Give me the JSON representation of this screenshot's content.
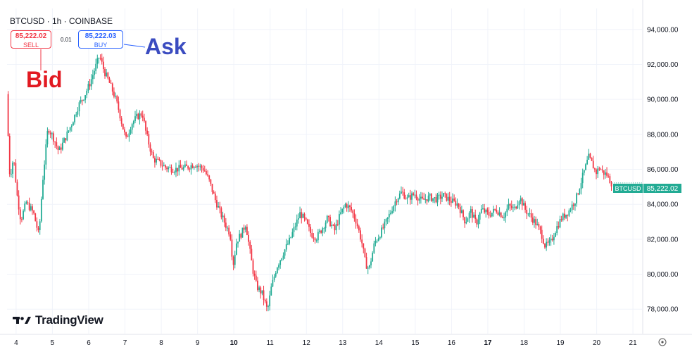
{
  "header": {
    "title": "BTCUSD · 1h · COINBASE",
    "sell_price": "85,222.02",
    "sell_label": "SELL",
    "spread": "0.01",
    "buy_price": "85,222.03",
    "buy_label": "BUY"
  },
  "annotations": {
    "bid": "Bid",
    "ask": "Ask"
  },
  "branding": {
    "name": "TradingView"
  },
  "last_price_tag": {
    "symbol": "BTCUSD",
    "price": "85,222.02"
  },
  "colors": {
    "up": "#22ab94",
    "down": "#f23645",
    "bid_text": "#e21a22",
    "ask_text": "#3b4cc0",
    "buy_border": "#2962ff",
    "tag_bg": "#22ab94"
  },
  "chart_data": {
    "type": "candlestick",
    "title": "BTCUSD · 1h · COINBASE",
    "x_axis": {
      "ticks": [
        "4",
        "5",
        "6",
        "7",
        "8",
        "9",
        "10",
        "11",
        "12",
        "13",
        "14",
        "15",
        "16",
        "17",
        "18",
        "19",
        "20",
        "21"
      ],
      "bold_ticks": [
        "10",
        "17"
      ],
      "range": [
        3.75,
        21.25
      ]
    },
    "y_axis": {
      "position": "right",
      "ticks": [
        "78,000.00",
        "80,000.00",
        "82,000.00",
        "84,000.00",
        "86,000.00",
        "88,000.00",
        "90,000.00",
        "92,000.00",
        "94,000.00"
      ],
      "tick_values": [
        78000,
        80000,
        82000,
        84000,
        86000,
        88000,
        90000,
        92000,
        94000
      ],
      "range": [
        76600,
        95200
      ]
    },
    "grid": true,
    "last_price": 85222.02,
    "price_path": [
      [
        3.76,
        90300
      ],
      [
        3.8,
        88000
      ],
      [
        3.85,
        85500
      ],
      [
        3.95,
        86700
      ],
      [
        4.05,
        84500
      ],
      [
        4.15,
        83100
      ],
      [
        4.3,
        84100
      ],
      [
        4.5,
        83500
      ],
      [
        4.65,
        82200
      ],
      [
        4.75,
        85300
      ],
      [
        4.9,
        88400
      ],
      [
        5.05,
        87800
      ],
      [
        5.2,
        87000
      ],
      [
        5.4,
        87900
      ],
      [
        5.55,
        88600
      ],
      [
        5.75,
        89700
      ],
      [
        5.9,
        90200
      ],
      [
        6.05,
        90900
      ],
      [
        6.2,
        91800
      ],
      [
        6.32,
        92500
      ],
      [
        6.45,
        91600
      ],
      [
        6.6,
        90900
      ],
      [
        6.75,
        90100
      ],
      [
        6.85,
        89400
      ],
      [
        6.95,
        88500
      ],
      [
        7.05,
        87700
      ],
      [
        7.2,
        88600
      ],
      [
        7.35,
        89000
      ],
      [
        7.5,
        89200
      ],
      [
        7.6,
        88100
      ],
      [
        7.7,
        87300
      ],
      [
        7.8,
        86600
      ],
      [
        7.95,
        86400
      ],
      [
        8.15,
        86100
      ],
      [
        8.4,
        86000
      ],
      [
        8.7,
        86100
      ],
      [
        8.95,
        86300
      ],
      [
        9.2,
        86000
      ],
      [
        9.35,
        85300
      ],
      [
        9.5,
        84300
      ],
      [
        9.65,
        83500
      ],
      [
        9.8,
        82800
      ],
      [
        9.92,
        82300
      ],
      [
        10.0,
        80500
      ],
      [
        10.1,
        81900
      ],
      [
        10.25,
        82400
      ],
      [
        10.35,
        82900
      ],
      [
        10.45,
        81500
      ],
      [
        10.55,
        80200
      ],
      [
        10.65,
        79300
      ],
      [
        10.8,
        78900
      ],
      [
        10.95,
        77900
      ],
      [
        11.05,
        79200
      ],
      [
        11.2,
        80400
      ],
      [
        11.4,
        81300
      ],
      [
        11.55,
        81900
      ],
      [
        11.7,
        82700
      ],
      [
        11.85,
        83500
      ],
      [
        12.0,
        83000
      ],
      [
        12.15,
        82300
      ],
      [
        12.3,
        82100
      ],
      [
        12.45,
        82600
      ],
      [
        12.6,
        83200
      ],
      [
        12.8,
        82500
      ],
      [
        12.95,
        83400
      ],
      [
        13.1,
        84000
      ],
      [
        13.25,
        83700
      ],
      [
        13.4,
        83000
      ],
      [
        13.55,
        81800
      ],
      [
        13.65,
        80600
      ],
      [
        13.75,
        80300
      ],
      [
        13.9,
        81800
      ],
      [
        14.05,
        82300
      ],
      [
        14.2,
        82900
      ],
      [
        14.35,
        83600
      ],
      [
        14.5,
        84300
      ],
      [
        14.65,
        84700
      ],
      [
        14.8,
        84300
      ],
      [
        15.0,
        84600
      ],
      [
        15.2,
        84200
      ],
      [
        15.4,
        84400
      ],
      [
        15.6,
        84300
      ],
      [
        15.8,
        84500
      ],
      [
        16.0,
        84200
      ],
      [
        16.2,
        84000
      ],
      [
        16.4,
        83000
      ],
      [
        16.55,
        83600
      ],
      [
        16.7,
        82900
      ],
      [
        16.85,
        83700
      ],
      [
        17.05,
        83400
      ],
      [
        17.25,
        83700
      ],
      [
        17.45,
        83300
      ],
      [
        17.6,
        83900
      ],
      [
        17.75,
        83700
      ],
      [
        17.9,
        84400
      ],
      [
        18.05,
        83700
      ],
      [
        18.2,
        83300
      ],
      [
        18.35,
        82900
      ],
      [
        18.5,
        82300
      ],
      [
        18.6,
        81600
      ],
      [
        18.75,
        81800
      ],
      [
        18.9,
        82600
      ],
      [
        19.05,
        83200
      ],
      [
        19.25,
        83600
      ],
      [
        19.45,
        84300
      ],
      [
        19.65,
        85700
      ],
      [
        19.8,
        86700
      ],
      [
        19.9,
        86300
      ],
      [
        20.0,
        85800
      ],
      [
        20.1,
        86100
      ],
      [
        20.2,
        85800
      ],
      [
        20.3,
        85700
      ],
      [
        20.42,
        85222
      ]
    ]
  }
}
